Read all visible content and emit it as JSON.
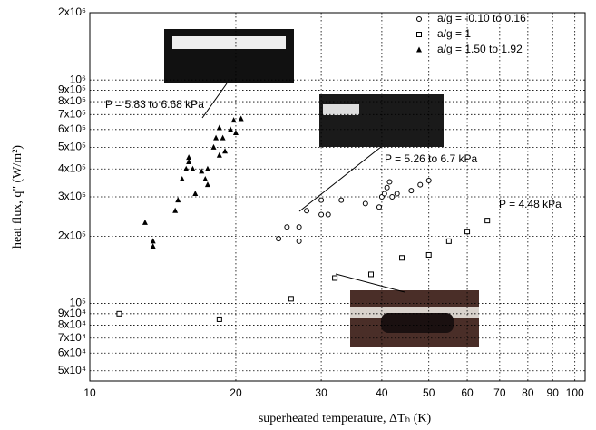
{
  "chart_data": {
    "type": "scatter",
    "xlabel": "superheated temperature, ΔTₕ (K)",
    "ylabel": "heat flux, q\" (W/m²)",
    "xscale": "log",
    "yscale": "log",
    "grid": true,
    "legend": "upper right",
    "xlim": [
      10,
      105
    ],
    "ylim": [
      45000,
      2000000
    ],
    "xticks": [
      10,
      20,
      30,
      40,
      50,
      60,
      70,
      80,
      90,
      100
    ],
    "yticks": [
      {
        "value": 50000,
        "label": "5x10⁴"
      },
      {
        "value": 60000,
        "label": "6x10⁴"
      },
      {
        "value": 70000,
        "label": "7x10⁴"
      },
      {
        "value": 80000,
        "label": "8x10⁴"
      },
      {
        "value": 90000,
        "label": "9x10⁴"
      },
      {
        "value": 100000,
        "label": "10⁵"
      },
      {
        "value": 200000,
        "label": "2x10⁵"
      },
      {
        "value": 300000,
        "label": "3x10⁵"
      },
      {
        "value": 400000,
        "label": "4x10⁵"
      },
      {
        "value": 500000,
        "label": "5x10⁵"
      },
      {
        "value": 600000,
        "label": "6x10⁵"
      },
      {
        "value": 700000,
        "label": "7x10⁵"
      },
      {
        "value": 800000,
        "label": "8x10⁵"
      },
      {
        "value": 900000,
        "label": "9x10⁵"
      },
      {
        "value": 1000000,
        "label": "10⁶"
      },
      {
        "value": 2000000,
        "label": "2x10⁶"
      }
    ],
    "annotations": [
      "P = 5.83 to 6.68 kPa",
      "P = 5.26 to 6.7 kPa",
      "P = 4.48 kPa"
    ],
    "series": [
      {
        "name": "a/g = -0.10 to 0.16",
        "color": "#000000",
        "marker": "circle",
        "x": [
          24.5,
          25.5,
          27,
          27,
          28,
          30,
          30,
          31,
          33,
          37,
          39.5,
          40,
          40.5,
          41,
          41.5,
          42,
          43,
          46,
          48,
          50
        ],
        "values": [
          195000,
          220000,
          190000,
          220000,
          260000,
          250000,
          290000,
          250000,
          290000,
          280000,
          270000,
          300000,
          310000,
          330000,
          350000,
          300000,
          310000,
          320000,
          340000,
          355000
        ]
      },
      {
        "name": "a/g = 1",
        "color": "#000000",
        "marker": "square",
        "x": [
          11.5,
          18.5,
          26,
          32,
          38,
          44,
          50,
          55,
          60,
          66
        ],
        "values": [
          90000,
          85000,
          105000,
          130000,
          135000,
          160000,
          165000,
          190000,
          210000,
          235000
        ]
      },
      {
        "name": "a/g = 1.50 to 1.92",
        "color": "#000000",
        "marker": "triangle",
        "x": [
          13,
          13.5,
          13.5,
          15,
          15.2,
          15.5,
          15.8,
          16,
          16,
          16.3,
          16.5,
          17,
          17.3,
          17.5,
          17.5,
          18,
          18.2,
          18.5,
          18.5,
          18.8,
          19,
          19.5,
          19.8,
          20,
          20.5
        ],
        "values": [
          230000,
          190000,
          180000,
          260000,
          290000,
          360000,
          400000,
          450000,
          430000,
          400000,
          310000,
          390000,
          360000,
          400000,
          340000,
          500000,
          550000,
          460000,
          610000,
          550000,
          480000,
          600000,
          660000,
          580000,
          670000
        ]
      }
    ]
  }
}
